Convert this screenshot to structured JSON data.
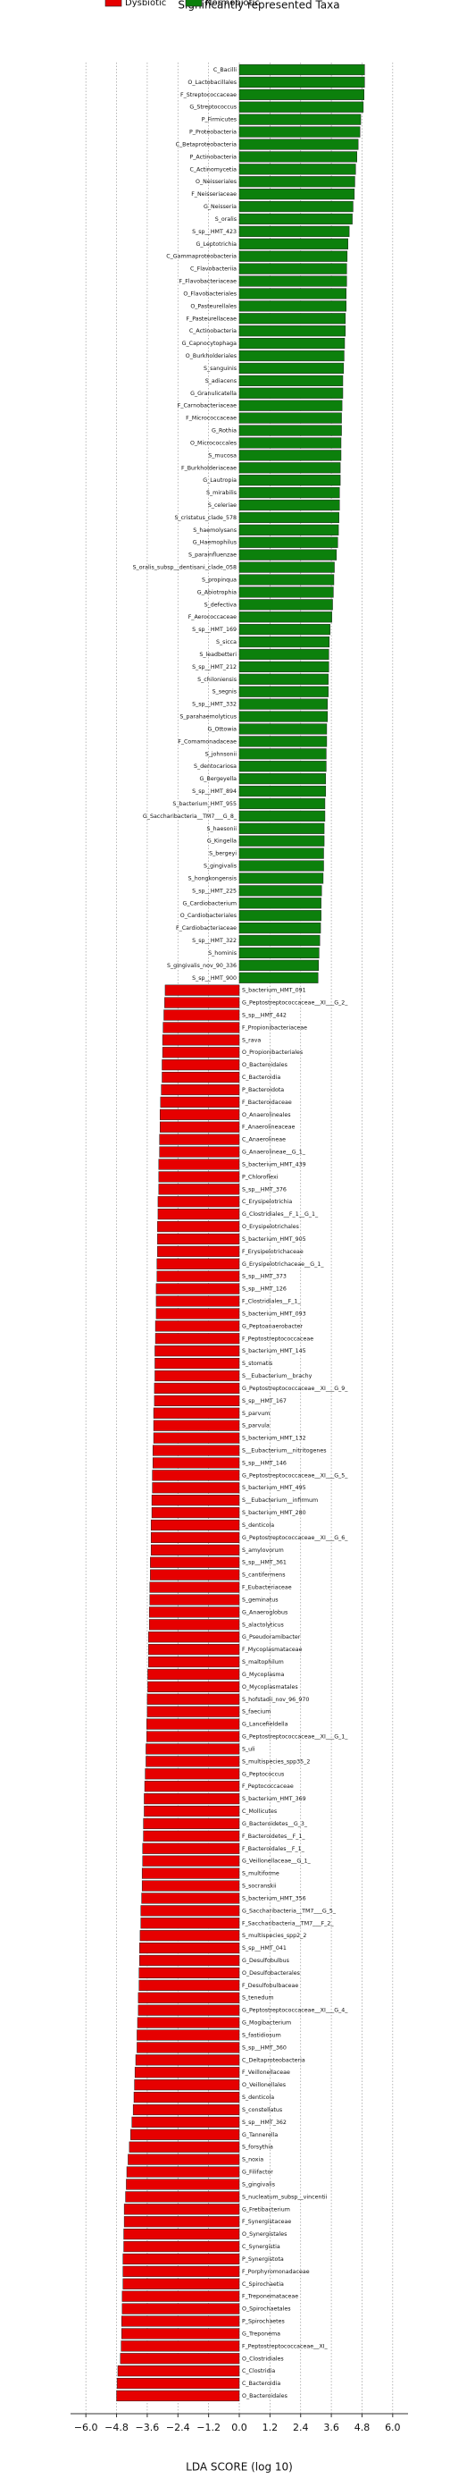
{
  "chart_data": {
    "type": "bar",
    "orientation": "horizontal",
    "title": "Significantly represented Taxa",
    "xlabel": "LDA SCORE (log 10)",
    "xlim": [
      -6.6,
      6.6
    ],
    "xticks": [
      {
        "value": -6,
        "label": "−6.0"
      },
      {
        "value": -4.8,
        "label": "−4.8"
      },
      {
        "value": -3.6,
        "label": "−3.6"
      },
      {
        "value": -2.4,
        "label": "−2.4"
      },
      {
        "value": -1.2,
        "label": "−1.2"
      },
      {
        "value": 0,
        "label": "0.0"
      },
      1.2,
      2.4,
      3.6,
      4.8,
      {
        "value": 6,
        "label": "6.0"
      }
    ],
    "grid": true,
    "legend": "top-left",
    "series": [
      {
        "name": "Normobiotic",
        "color": "#0c800c",
        "categories": [
          "C_Bacilli",
          "O_Lactobacillales",
          "F_Streptococcaceae",
          "G_Streptococcus",
          "P_Firmicutes",
          "P_Proteobacteria",
          "C_Betaproteobacteria",
          "P_Actinobacteria",
          "C_Actinomycetia",
          "O_Neisseriales",
          "F_Neisseriaceae",
          "G_Neisseria",
          "S_oralis",
          "S_sp__HMT_423",
          "G_Leptotrichia",
          "C_Gammaproteobacteria",
          "C_Flavobacteriia",
          "F_Flavobacteriaceae",
          "O_Flavobacteriales",
          "O_Pasteurellales",
          "F_Pasteurellaceae",
          "C_Actinobacteria",
          "G_Capnocytophaga",
          "O_Burkholderiales",
          "S_sanguinis",
          "S_adiacens",
          "G_Granulicatella",
          "F_Carnobacteriaceae",
          "F_Micrococcaceae",
          "G_Rothia",
          "O_Micrococcales",
          "S_mucosa",
          "F_Burkholderiaceae",
          "G_Lautropia",
          "S_mirabilis",
          "S_celeriae",
          "S_cristatus_clade_578",
          "S_haemolysans",
          "G_Haemophilus",
          "S_parainfluenzae",
          "S_oralis_subsp__dentisani_clade_058",
          "S_propinqua",
          "G_Abiotrophia",
          "S_defectiva",
          "F_Aerococcaceae",
          "S_sp__HMT_169",
          "S_sicca",
          "S_leadbetteri",
          "S_sp__HMT_212",
          "S_chiloniensis",
          "S_segnis",
          "S_sp__HMT_332",
          "S_parahaemolyticus",
          "G_Ottowia",
          "F_Comamonadaceae",
          "S_johnsonii",
          "S_dentocariosa",
          "G_Bergeyella",
          "S_sp__HMT_894",
          "S_bacterium_HMT_955",
          "G_Saccharibacteria__TM7___G_8_",
          "S_haesonii",
          "G_Kingella",
          "S_bergeyi",
          "S_gingivalis",
          "S_hongkongensis",
          "S_sp__HMT_225",
          "G_Cardiobacterium",
          "O_Cardiobacteriales",
          "F_Cardiobacteriaceae",
          "S_sp__HMT_322",
          "S_hominis",
          "S_gingivalis_nov_90_336",
          "S_sp__HMT_900"
        ],
        "values": [
          4.9,
          4.9,
          4.88,
          4.85,
          4.75,
          4.72,
          4.65,
          4.6,
          4.55,
          4.52,
          4.5,
          4.45,
          4.42,
          4.3,
          4.25,
          4.22,
          4.2,
          4.2,
          4.18,
          4.18,
          4.15,
          4.15,
          4.12,
          4.1,
          4.08,
          4.05,
          4.05,
          4.02,
          4.0,
          4.0,
          3.98,
          3.98,
          3.95,
          3.95,
          3.92,
          3.92,
          3.9,
          3.88,
          3.85,
          3.8,
          3.72,
          3.7,
          3.68,
          3.65,
          3.62,
          3.55,
          3.52,
          3.5,
          3.5,
          3.48,
          3.48,
          3.45,
          3.45,
          3.42,
          3.42,
          3.4,
          3.4,
          3.38,
          3.38,
          3.35,
          3.35,
          3.32,
          3.32,
          3.3,
          3.3,
          3.28,
          3.22,
          3.2,
          3.2,
          3.18,
          3.15,
          3.12,
          3.1,
          3.08
        ]
      },
      {
        "name": "Dysbiotic",
        "color": "#e60000",
        "categories": [
          "S_bacterium_HMT_091",
          "G_Peptostreptococcaceae__XI___G_2_",
          "S_sp__HMT_442",
          "F_Propionibacteriaceae",
          "S_rava",
          "O_Propionibacteriales",
          "O_Bacteroidales",
          "C_Bacteroidia",
          "P_Bacteroidota",
          "F_Bacteroidaceae",
          "O_Anaerolineales",
          "F_Anaerolineaceae",
          "C_Anaerolineae",
          "G_Anaerolineae__G_1_",
          "S_bacterium_HMT_439",
          "P_Chloroflexi",
          "S_sp__HMT_376",
          "C_Erysipelotrichia",
          "G_Clostridiales__F_1__G_1_",
          "O_Erysipelotrichales",
          "S_bacterium_HMT_905",
          "F_Erysipelotrichaceae",
          "G_Erysipelotrichaceae__G_1_",
          "S_sp__HMT_373",
          "S_sp__HMT_126",
          "F_Clostridiales__F_1_",
          "S_bacterium_HMT_093",
          "G_Peptoanaerobacter",
          "F_Peptostreptococcaceae",
          "S_bacterium_HMT_145",
          "S_stomatis",
          "S__Eubacterium__brachy",
          "G_Peptostreptococcaceae__XI___G_9_",
          "S_sp__HMT_167",
          "S_parvum",
          "S_parvula",
          "S_bacterium_HMT_132",
          "S__Eubacterium__nitritogenes",
          "S_sp__HMT_146",
          "G_Peptostreptococcaceae__XI___G_5_",
          "S_bacterium_HMT_495",
          "S__Eubacterium__infirmum",
          "S_bacterium_HMT_280",
          "S_denticola",
          "G_Peptostreptococcaceae__XI___G_6_",
          "S_amylovorum",
          "S_sp__HMT_361",
          "S_cantifermens",
          "F_Eubacteriaceae",
          "S_geminatus",
          "G_Anaeroglobus",
          "S_alactolyticus",
          "G_Pseudoramibacter",
          "F_Mycoplasmataceae",
          "S_maltophilum",
          "G_Mycoplasma",
          "O_Mycoplasmatales",
          "S_hofstadii_nov_96_970",
          "S_faecium",
          "G_Lancefieldella",
          "G_Peptostreptococcaceae__XI___G_1_",
          "S_uli",
          "S_multispecies_spp35_2",
          "G_Peptococcus",
          "F_Peptococcaceae",
          "S_bacterium_HMT_369",
          "C_Mollicutes",
          "G_Bacteroidetes__G_3_",
          "F_Bacteroidetes__F_1_",
          "F_Bacteroidales__F_1_",
          "G_Veillonellaceae__G_1_",
          "S_multiforme",
          "S_socranskii",
          "S_bacterium_HMT_356",
          "G_Saccharibacteria__TM7___G_5_",
          "F_Saccharibacteria__TM7___F_2_",
          "S_multispecies_spp2_2",
          "S_sp__HMT_041",
          "G_Desulfobulbus",
          "O_Desulfobacterales",
          "F_Desulfobulbaceae",
          "S_tenedum",
          "G_Peptostreptococcaceae__XI___G_4_",
          "G_Mogibacterium",
          "S_fastidiosum",
          "S_sp__HMT_360",
          "C_Deltaproteobacteria",
          "F_Veillonellaceae",
          "O_Veillonellales",
          "S_denticola",
          "S_constellatus",
          "S_sp__HMT_362",
          "G_Tannerella",
          "S_forsythia",
          "S_noxia",
          "G_Filifactor",
          "S_gingivalis",
          "S_nucleatum_subsp__vincentii",
          "G_Fretibacterium",
          "F_Synergistaceae",
          "O_Synergistales",
          "C_Synergistia",
          "P_Synergistota",
          "F_Porphyromonadaceae",
          "C_Spirochaetia",
          "F_Treponemataceae",
          "O_Spirochaetales",
          "P_Spirochaetes",
          "G_Treponema",
          "F_Peptostreptococcaceae__XI_",
          "O_Clostridiales",
          "C_Clostridia",
          "C_Bacteroidia",
          "O_Bacteroidales"
        ],
        "values": [
          -2.9,
          -2.92,
          -2.95,
          -2.98,
          -3.0,
          -3.0,
          -3.02,
          -3.02,
          -3.05,
          -3.08,
          -3.1,
          -3.1,
          -3.12,
          -3.12,
          -3.15,
          -3.15,
          -3.15,
          -3.18,
          -3.18,
          -3.2,
          -3.2,
          -3.2,
          -3.22,
          -3.22,
          -3.25,
          -3.25,
          -3.25,
          -3.28,
          -3.28,
          -3.3,
          -3.3,
          -3.3,
          -3.32,
          -3.32,
          -3.35,
          -3.35,
          -3.35,
          -3.38,
          -3.38,
          -3.4,
          -3.4,
          -3.42,
          -3.42,
          -3.45,
          -3.45,
          -3.45,
          -3.48,
          -3.48,
          -3.5,
          -3.5,
          -3.52,
          -3.52,
          -3.55,
          -3.55,
          -3.55,
          -3.58,
          -3.58,
          -3.6,
          -3.6,
          -3.62,
          -3.62,
          -3.65,
          -3.65,
          -3.68,
          -3.7,
          -3.72,
          -3.72,
          -3.75,
          -3.75,
          -3.78,
          -3.78,
          -3.8,
          -3.8,
          -3.82,
          -3.85,
          -3.85,
          -3.88,
          -3.9,
          -3.9,
          -3.92,
          -3.92,
          -3.95,
          -3.95,
          -3.98,
          -4.0,
          -4.0,
          -4.05,
          -4.08,
          -4.1,
          -4.12,
          -4.15,
          -4.2,
          -4.25,
          -4.3,
          -4.35,
          -4.4,
          -4.42,
          -4.45,
          -4.5,
          -4.5,
          -4.52,
          -4.52,
          -4.55,
          -4.55,
          -4.55,
          -4.58,
          -4.58,
          -4.6,
          -4.6,
          -4.62,
          -4.65,
          -4.75,
          -4.78,
          -4.8
        ]
      }
    ]
  }
}
